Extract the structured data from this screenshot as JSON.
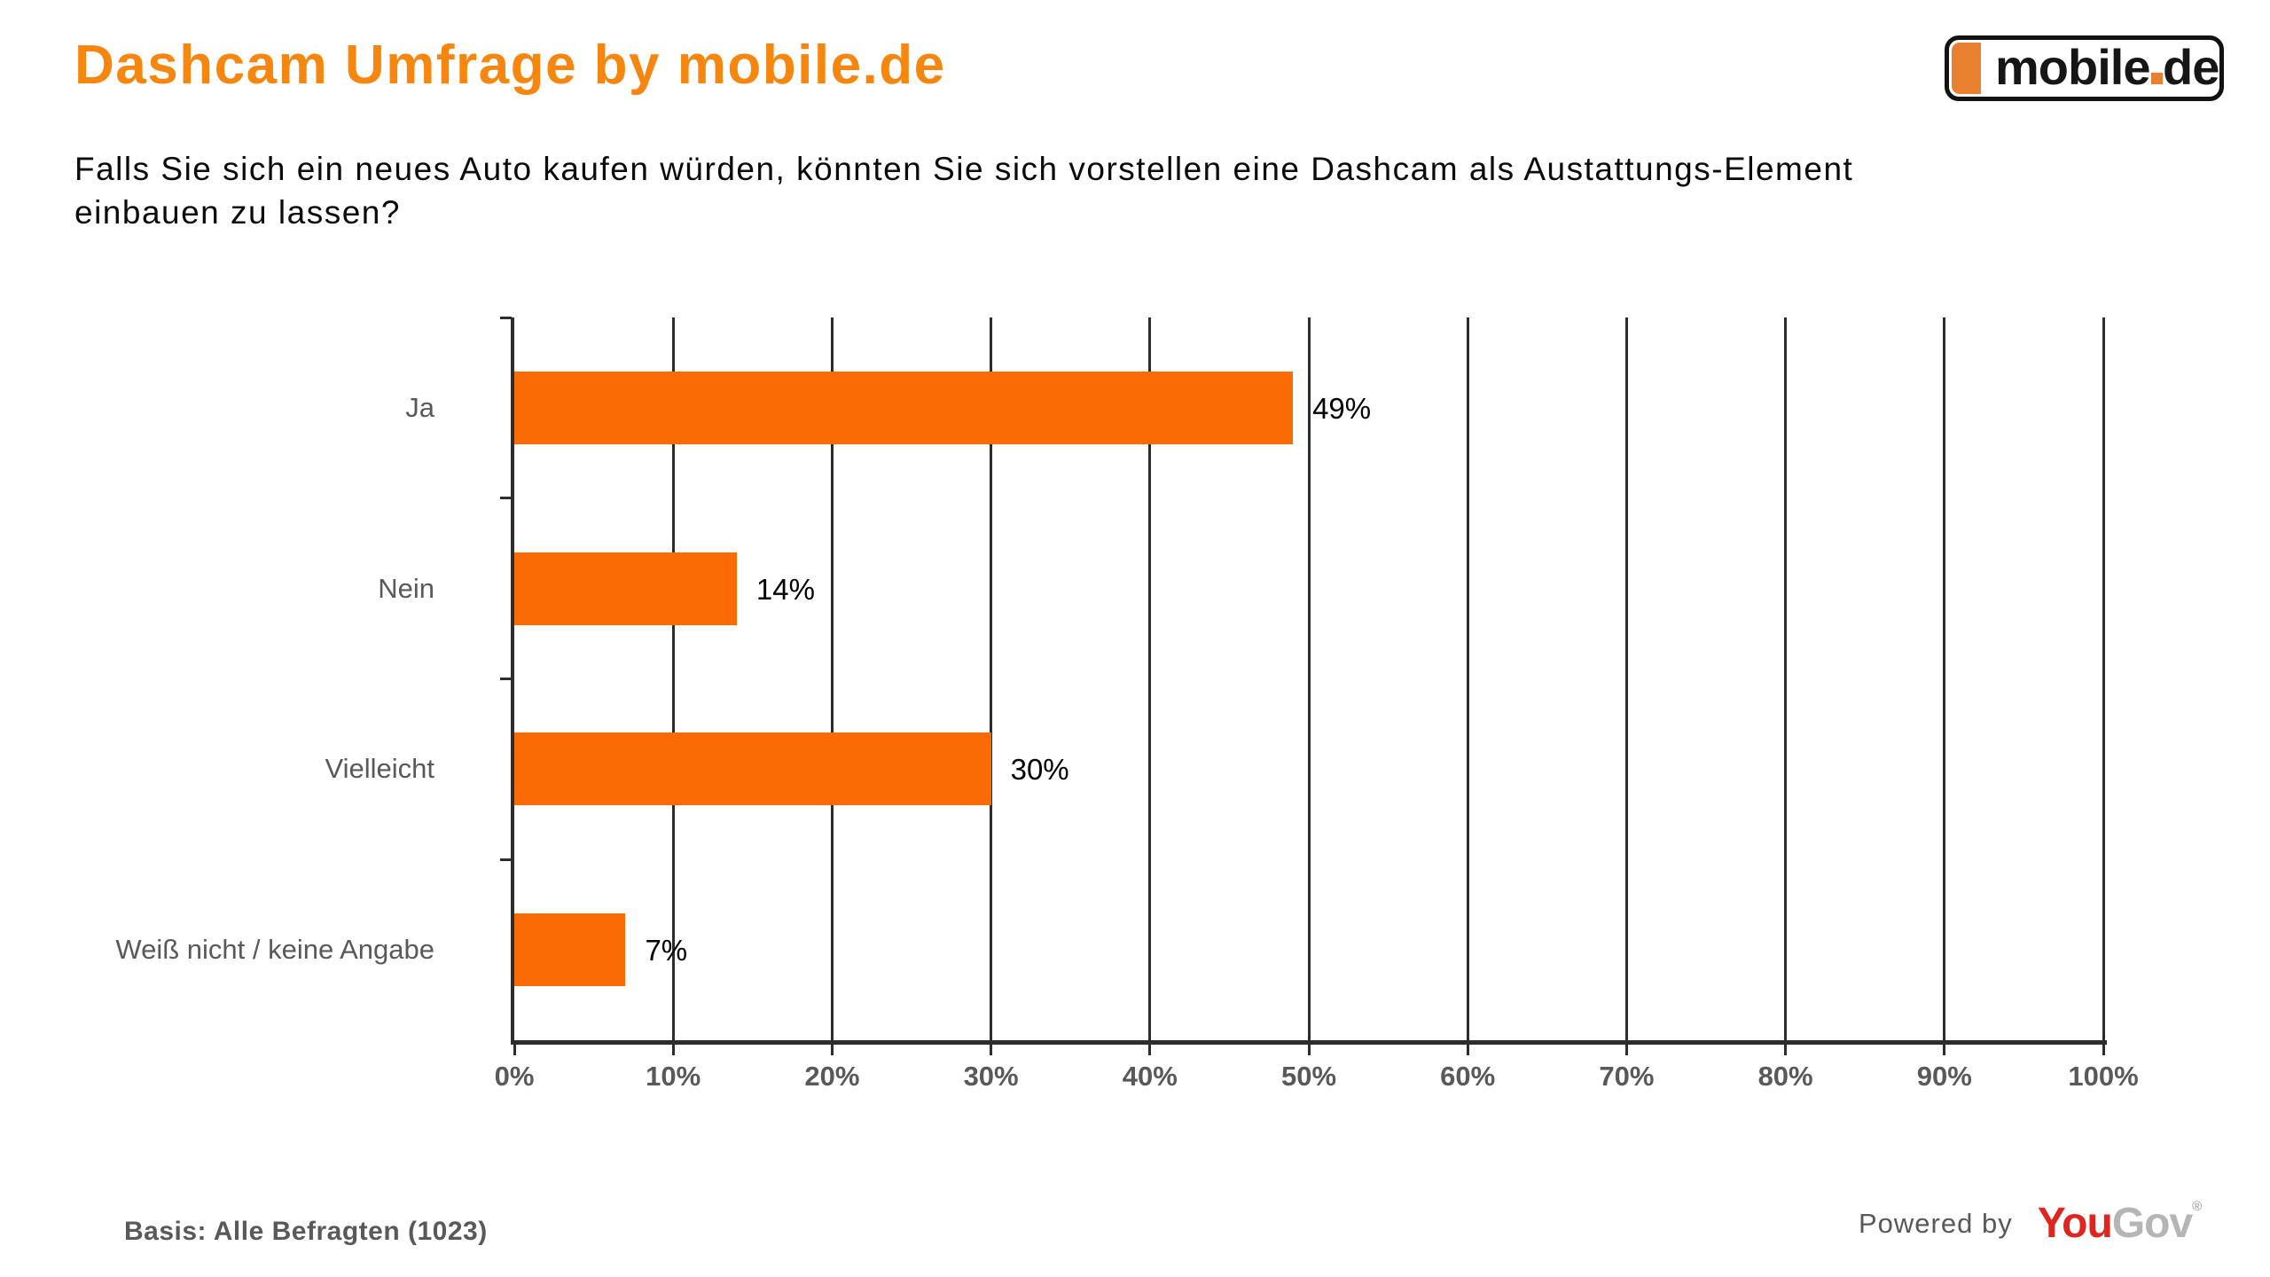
{
  "header": {
    "title": "Dashcam Umfrage by mobile.de",
    "question": "Falls Sie sich ein neues Auto kaufen würden, könnten Sie sich vorstellen eine Dashcam als Austattungs-Element\neinbauen zu lassen?"
  },
  "logo_mobile_de": {
    "word": "mobile",
    "dot": ".",
    "tld": "de",
    "orange": "#E8802F"
  },
  "chart_data": {
    "type": "bar",
    "orientation": "horizontal",
    "categories": [
      "Ja",
      "Nein",
      "Vielleicht",
      "Weiß nicht / keine Angabe"
    ],
    "values": [
      49,
      14,
      30,
      7
    ],
    "value_labels": [
      "49%",
      "14%",
      "30%",
      "7%"
    ],
    "xlim": [
      0,
      100
    ],
    "x_tick_labels": [
      "0%",
      "10%",
      "20%",
      "30%",
      "40%",
      "50%",
      "60%",
      "70%",
      "80%",
      "90%",
      "100%"
    ],
    "grid": "vertical",
    "legend": "none",
    "bar_color": "#FB6B05",
    "axis_color": "#2d2d2d",
    "tick_label_color": "#595959",
    "value_label_color": "#000000"
  },
  "footer": {
    "basis": "Basis: Alle Befragten (1023)",
    "powered_by": "Powered by",
    "yougov": {
      "you": "You",
      "gov": "Gov",
      "registered": "®",
      "you_color": "#E0251E",
      "gov_color": "#B5B5B5"
    }
  }
}
